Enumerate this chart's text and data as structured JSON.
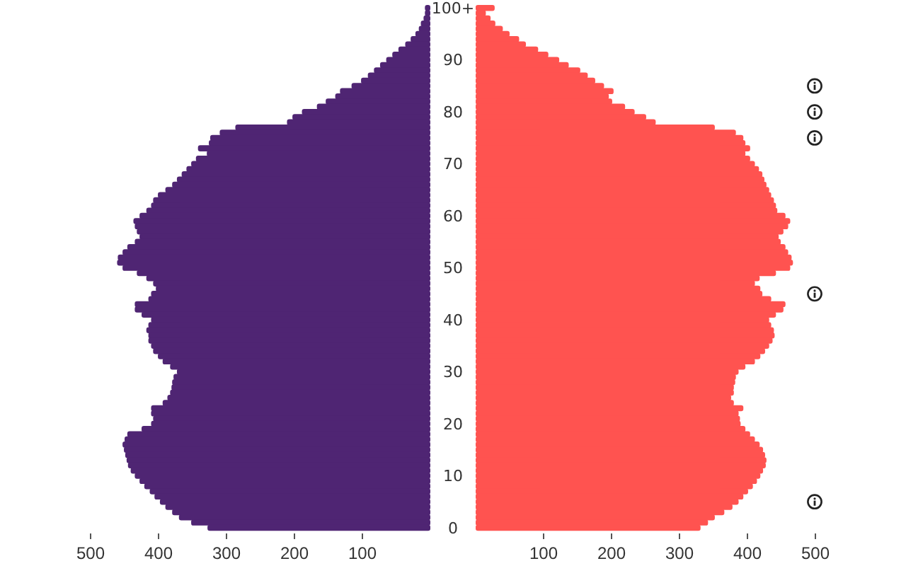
{
  "chart_data": [
    {
      "type": "bar",
      "orientation": "horizontal",
      "color": "#4f2573",
      "xlim": [
        500,
        0
      ],
      "xticks": [
        500,
        400,
        300,
        200,
        100
      ],
      "categories": [
        "100+",
        null,
        null,
        null,
        null,
        null,
        null,
        null,
        null,
        null,
        "90",
        null,
        null,
        null,
        null,
        null,
        null,
        null,
        null,
        null,
        "80",
        null,
        null,
        null,
        null,
        null,
        null,
        null,
        null,
        null,
        "70",
        null,
        null,
        null,
        null,
        null,
        null,
        null,
        null,
        null,
        "60",
        null,
        null,
        null,
        null,
        null,
        null,
        null,
        null,
        null,
        "50",
        null,
        null,
        null,
        null,
        null,
        null,
        null,
        null,
        null,
        "40",
        null,
        null,
        null,
        null,
        null,
        null,
        null,
        null,
        null,
        "30",
        null,
        null,
        null,
        null,
        null,
        null,
        null,
        null,
        null,
        "20",
        null,
        null,
        null,
        null,
        null,
        null,
        null,
        null,
        null,
        "10",
        null,
        null,
        null,
        null,
        null,
        null,
        null,
        null,
        null,
        "0"
      ],
      "values": [
        8,
        8,
        10,
        14,
        17,
        22,
        29,
        37,
        47,
        56,
        65,
        74,
        83,
        92,
        102,
        116,
        133,
        140,
        154,
        167,
        189,
        203,
        211,
        287,
        310,
        324,
        326,
        342,
        329,
        345,
        352,
        359,
        366,
        373,
        380,
        390,
        401,
        408,
        411,
        418,
        428,
        437,
        435,
        432,
        428,
        435,
        446,
        453,
        460,
        461,
        453,
        432,
        418,
        408,
        404,
        411,
        415,
        435,
        435,
        425,
        411,
        415,
        418,
        415,
        415,
        411,
        408,
        401,
        394,
        383,
        373,
        378,
        380,
        381,
        383,
        387,
        394,
        411,
        411,
        408,
        411,
        425,
        446,
        450,
        453,
        451,
        449,
        447,
        445,
        441,
        435,
        428,
        421,
        413,
        406,
        398,
        390,
        380,
        370,
        352,
        328
      ]
    },
    {
      "type": "bar",
      "orientation": "horizontal",
      "color": "#ff5350",
      "xlim": [
        0,
        500
      ],
      "xticks": [
        100,
        200,
        300,
        400,
        500
      ],
      "tick_labels": "x",
      "values": [
        28,
        15,
        22,
        29,
        40,
        50,
        64,
        74,
        92,
        107,
        123,
        137,
        154,
        165,
        176,
        189,
        203,
        196,
        201,
        220,
        234,
        251,
        265,
        352,
        383,
        394,
        397,
        404,
        397,
        404,
        411,
        417,
        422,
        425,
        428,
        432,
        435,
        439,
        442,
        444,
        456,
        463,
        460,
        453,
        446,
        449,
        456,
        460,
        465,
        467,
        463,
        442,
        418,
        411,
        419,
        422,
        435,
        456,
        453,
        442,
        432,
        435,
        439,
        440,
        437,
        432,
        426,
        419,
        411,
        397,
        387,
        383,
        382,
        380,
        380,
        376,
        380,
        394,
        387,
        389,
        390,
        397,
        404,
        411,
        418,
        423,
        426,
        428,
        427,
        423,
        419,
        414,
        408,
        401,
        394,
        387,
        378,
        366,
        352,
        342,
        331
      ]
    }
  ]
}
